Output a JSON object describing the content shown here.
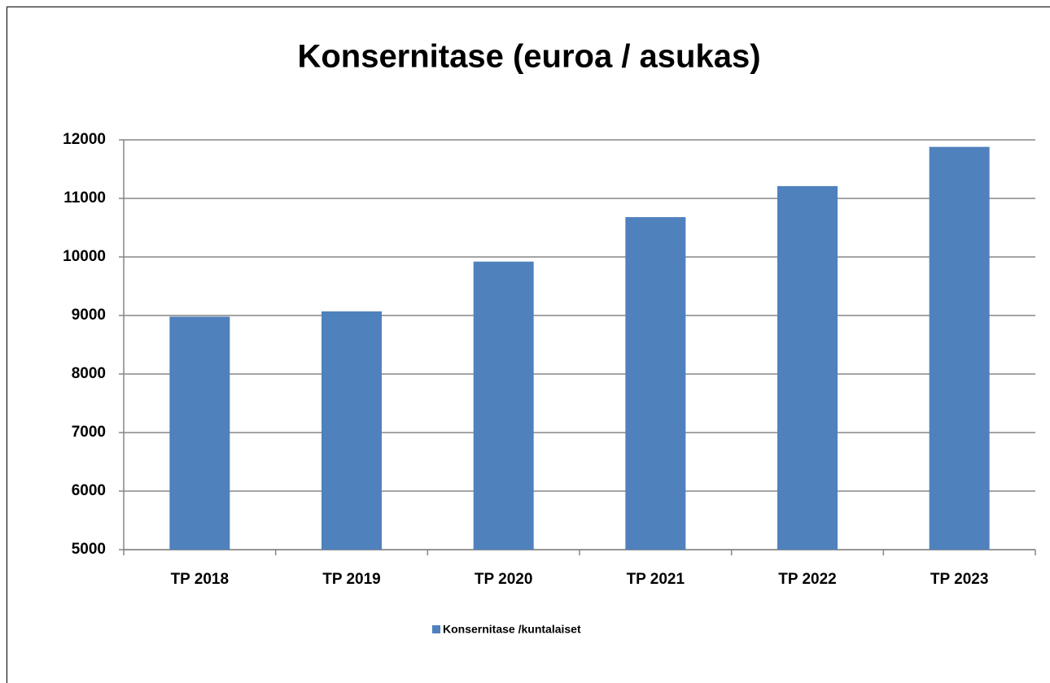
{
  "chart_data": {
    "type": "bar",
    "title": "Konsernitase (euroa / asukas)",
    "categories": [
      "TP 2018",
      "TP 2019",
      "TP 2020",
      "TP 2021",
      "TP 2022",
      "TP 2023"
    ],
    "series": [
      {
        "name": "Konsernitase /kuntalaiset",
        "color": "#4f81bd",
        "values": [
          8980,
          9070,
          9920,
          10680,
          11210,
          11880
        ]
      }
    ],
    "ylim": [
      5000,
      12000
    ],
    "yticks": [
      5000,
      6000,
      7000,
      8000,
      9000,
      10000,
      11000,
      12000
    ],
    "grid": true,
    "legend": "bottom"
  }
}
